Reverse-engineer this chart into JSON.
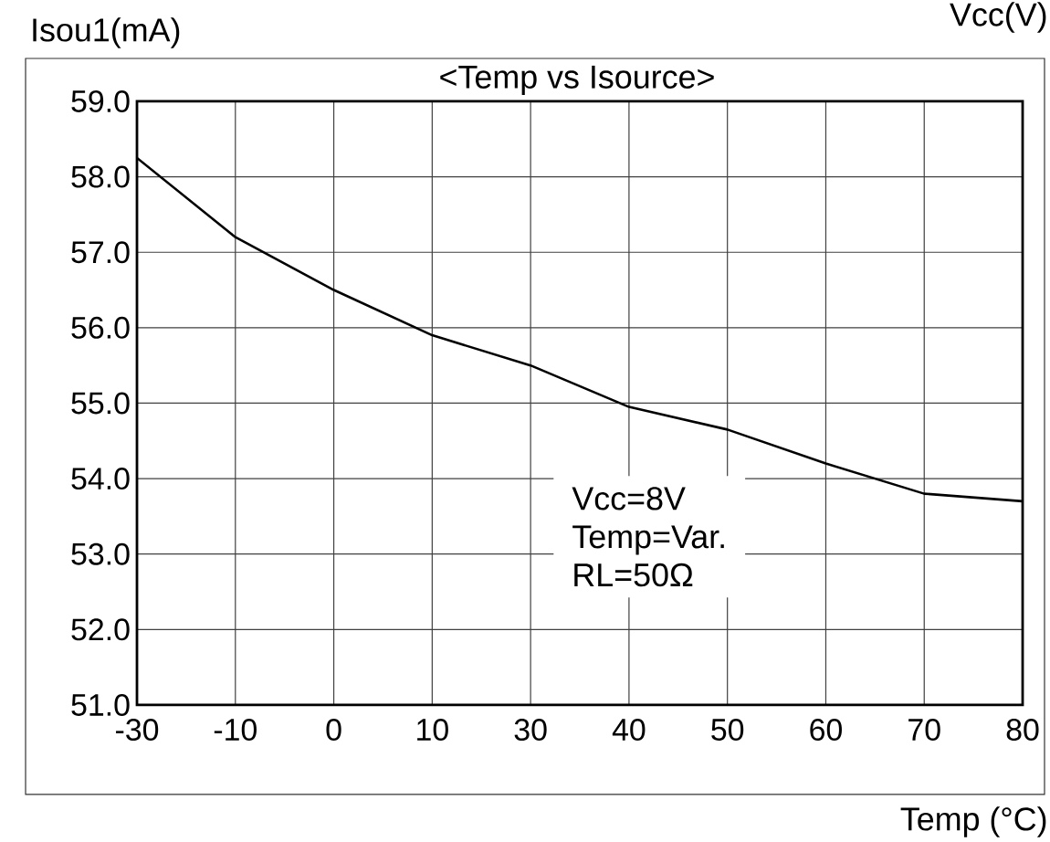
{
  "chart_data": {
    "type": "line",
    "title": "<Temp vs Isource>",
    "xlabel": "Temp (°C)",
    "ylabel": "Isou1(mA)",
    "annotations": [
      "Vcc(V)",
      "Vcc=8V",
      "Temp=Var.",
      "RL=50Ω"
    ],
    "categories": [
      "-30",
      "-10",
      "0",
      "10",
      "30",
      "40",
      "50",
      "60",
      "70",
      "80"
    ],
    "series": [
      {
        "color": "#000000",
        "values": [
          58.25,
          57.2,
          56.5,
          55.9,
          55.5,
          54.95,
          54.65,
          54.2,
          53.8,
          53.7
        ]
      }
    ],
    "ylim": [
      51,
      59
    ],
    "yticks": [
      {
        "value": 51,
        "label": "51.0"
      },
      {
        "value": 52,
        "label": "52.0"
      },
      {
        "value": 53,
        "label": "53.0"
      },
      {
        "value": 54,
        "label": "54.0"
      },
      {
        "value": 55,
        "label": "55.0"
      },
      {
        "value": 56,
        "label": "56.0"
      },
      {
        "value": 57,
        "label": "57.0"
      },
      {
        "value": 58,
        "label": "58.0"
      },
      {
        "value": 59,
        "label": "59.0"
      }
    ],
    "grid": true
  }
}
